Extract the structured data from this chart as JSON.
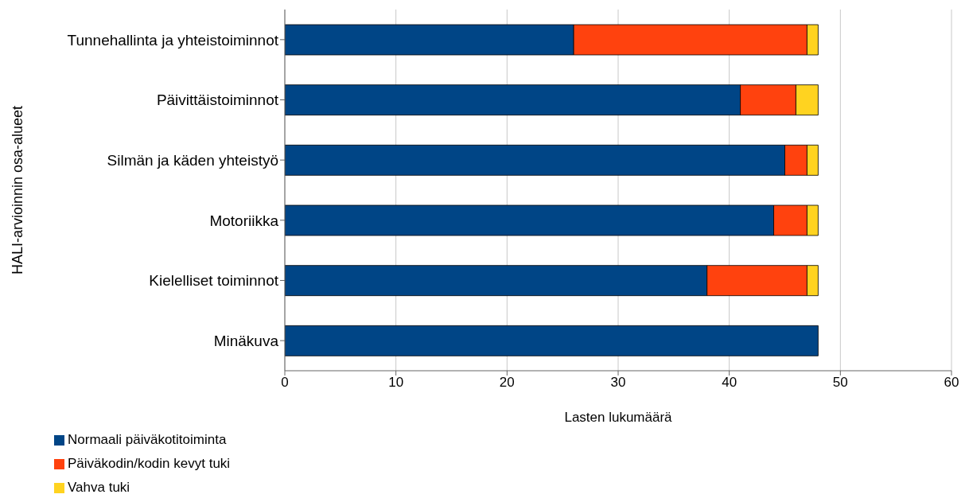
{
  "chart_data": {
    "type": "bar",
    "orientation": "horizontal",
    "stacked": true,
    "xlabel": "Lasten lukumäärä",
    "ylabel": "HALI-arvioinnin osa-alueet",
    "categories": [
      "Tunnehallinta ja yhteistoiminnot",
      "Päivittäistoiminnot",
      "Silmän ja käden yhteistyö",
      "Motoriikka",
      "Kielelliset toiminnot",
      "Minäkuva"
    ],
    "series": [
      {
        "name": "Normaali päiväkotitoiminta",
        "color": "#004586",
        "values": [
          26,
          41,
          45,
          44,
          38,
          48
        ]
      },
      {
        "name": "Päiväkodin/kodin kevyt tuki",
        "color": "#ff420e",
        "values": [
          21,
          5,
          2,
          3,
          9,
          0
        ]
      },
      {
        "name": "Vahva tuki",
        "color": "#ffd320",
        "values": [
          1,
          2,
          1,
          1,
          1,
          0
        ]
      }
    ],
    "xlim": [
      0,
      60
    ],
    "xticks": [
      0,
      10,
      20,
      30,
      40,
      50,
      60
    ],
    "grid": "x",
    "legend": "bottom left"
  }
}
